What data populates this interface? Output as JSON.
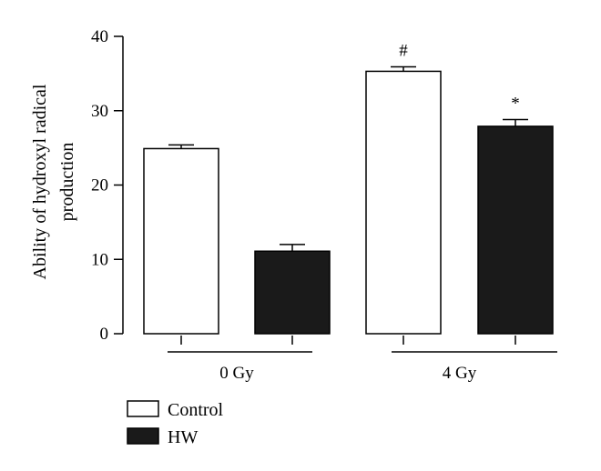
{
  "chart_data": {
    "type": "bar",
    "ylabel_lines": [
      "Ability of hydroxyl radical",
      "production"
    ],
    "xlabel": "",
    "ylim": [
      0,
      40
    ],
    "yticks": [
      0,
      10,
      20,
      30,
      40
    ],
    "groups": [
      "0 Gy",
      "4 Gy"
    ],
    "series": [
      {
        "name": "Control",
        "values": [
          24.9,
          35.3
        ],
        "errors": [
          0.5,
          0.6
        ],
        "annotations": [
          "",
          "#"
        ]
      },
      {
        "name": "HW",
        "values": [
          11.1,
          27.9
        ],
        "errors": [
          0.9,
          0.9
        ],
        "annotations": [
          "",
          "*"
        ]
      }
    ],
    "legend_position": "bottom-left",
    "grid": false
  },
  "colors": {
    "Control": "#ffffff",
    "HW": "#1a1a1a",
    "axis": "#000000"
  }
}
